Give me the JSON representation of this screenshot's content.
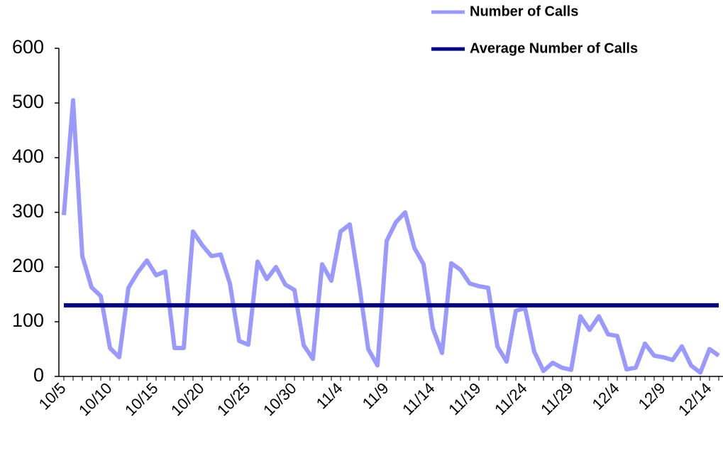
{
  "chart_data": {
    "type": "line",
    "categories": [
      "10/5",
      null,
      null,
      null,
      null,
      "10/10",
      null,
      null,
      null,
      null,
      "10/15",
      null,
      null,
      null,
      null,
      "10/20",
      null,
      null,
      null,
      null,
      "10/25",
      null,
      null,
      null,
      null,
      "10/30",
      null,
      null,
      null,
      null,
      "11/4",
      null,
      null,
      null,
      null,
      "11/9",
      null,
      null,
      null,
      null,
      "11/14",
      null,
      null,
      null,
      null,
      "11/19",
      null,
      null,
      null,
      null,
      "11/24",
      null,
      null,
      null,
      null,
      "11/29",
      null,
      null,
      null,
      null,
      "12/4",
      null,
      null,
      null,
      null,
      "12/9",
      null,
      null,
      null,
      null,
      "12/14",
      null
    ],
    "series": [
      {
        "name": "Number of Calls",
        "color": "#9999ff",
        "values": [
          295,
          505,
          220,
          163,
          147,
          52,
          35,
          162,
          190,
          212,
          185,
          192,
          52,
          52,
          265,
          240,
          220,
          223,
          170,
          65,
          58,
          210,
          178,
          200,
          168,
          158,
          57,
          32,
          205,
          175,
          265,
          278,
          170,
          50,
          20,
          248,
          282,
          300,
          235,
          205,
          88,
          43,
          207,
          195,
          170,
          165,
          162,
          55,
          27,
          120,
          125,
          45,
          10,
          25,
          16,
          12,
          110,
          85,
          110,
          77,
          74,
          13,
          16,
          60,
          38,
          35,
          30,
          55,
          20,
          7,
          50,
          38
        ]
      },
      {
        "name": "Average Number of Calls",
        "color": "#000080",
        "values": [
          130,
          130,
          130,
          130,
          130,
          130,
          130,
          130,
          130,
          130,
          130,
          130,
          130,
          130,
          130,
          130,
          130,
          130,
          130,
          130,
          130,
          130,
          130,
          130,
          130,
          130,
          130,
          130,
          130,
          130,
          130,
          130,
          130,
          130,
          130,
          130,
          130,
          130,
          130,
          130,
          130,
          130,
          130,
          130,
          130,
          130,
          130,
          130,
          130,
          130,
          130,
          130,
          130,
          130,
          130,
          130,
          130,
          130,
          130,
          130,
          130,
          130,
          130,
          130,
          130,
          130,
          130,
          130,
          130,
          130,
          130,
          130
        ]
      }
    ],
    "ylim": [
      0,
      600
    ],
    "yticks": [
      0,
      100,
      200,
      300,
      400,
      500,
      600
    ],
    "grid": false
  }
}
